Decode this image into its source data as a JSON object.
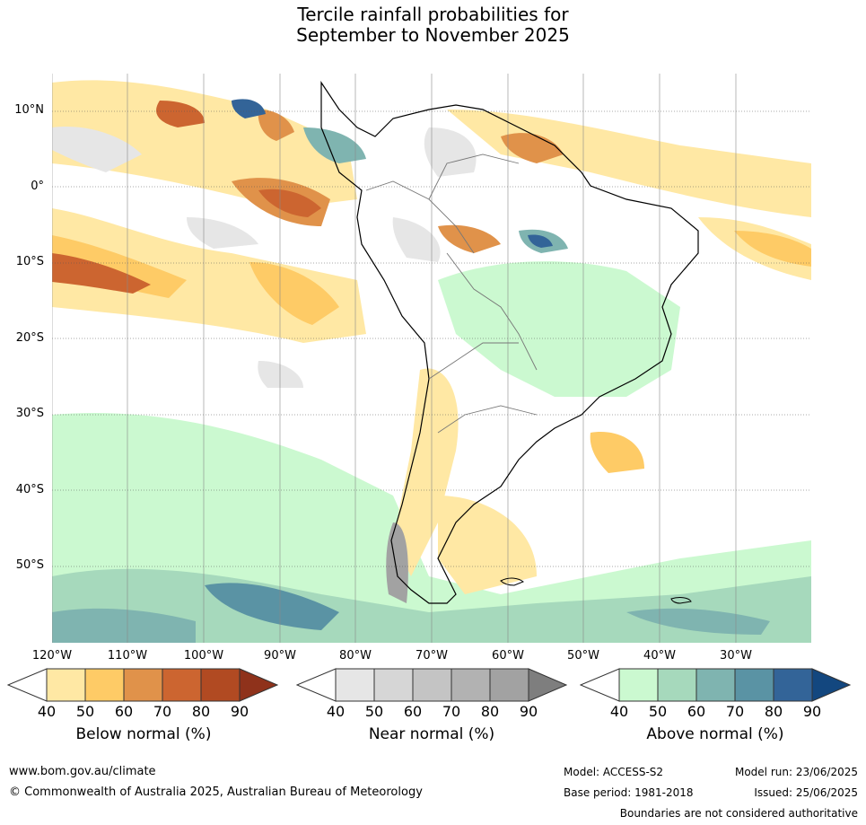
{
  "title": {
    "line1": "Tercile rainfall probabilities for",
    "line2": "September to November 2025"
  },
  "axes": {
    "lat_labels": [
      "10°N",
      "0°",
      "10°S",
      "20°S",
      "30°S",
      "40°S",
      "50°S"
    ],
    "lon_labels": [
      "120°W",
      "110°W",
      "100°W",
      "90°W",
      "80°W",
      "70°W",
      "60°W",
      "50°W",
      "40°W",
      "30°W"
    ]
  },
  "colorbars": [
    {
      "title": "Below normal (%)",
      "ticks": [
        "40",
        "50",
        "60",
        "70",
        "80",
        "90"
      ],
      "colors": [
        "#ffffff",
        "#ffe8a4",
        "#fecb66",
        "#e0924a",
        "#cc6530",
        "#b14a22",
        "#8f321b"
      ]
    },
    {
      "title": "Near normal (%)",
      "ticks": [
        "40",
        "50",
        "60",
        "70",
        "80",
        "90"
      ],
      "colors": [
        "#ffffff",
        "#e6e6e6",
        "#d6d6d6",
        "#c4c4c4",
        "#b2b2b2",
        "#a2a2a2",
        "#7e7e7e"
      ]
    },
    {
      "title": "Above normal (%)",
      "ticks": [
        "40",
        "50",
        "60",
        "70",
        "80",
        "90"
      ],
      "colors": [
        "#ffffff",
        "#cbf9d0",
        "#a6d9bc",
        "#7fb4b0",
        "#5a93a4",
        "#336498",
        "#13477f"
      ]
    }
  ],
  "footer": {
    "website": "www.bom.gov.au/climate",
    "copyright": "© Commonwealth of Australia 2025, Australian Bureau of Meteorology",
    "model": "Model: ACCESS-S2",
    "base_period": "Base period: 1981-2018",
    "model_run": "Model run: 23/06/2025",
    "issued": "Issued: 25/06/2025",
    "disclaimer": "Boundaries are not considered authoritative"
  }
}
